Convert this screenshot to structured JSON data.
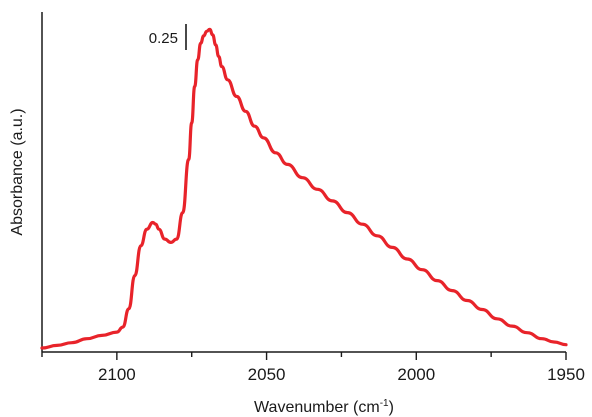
{
  "chart_data": {
    "type": "line",
    "title": "",
    "xlabel": "Wavenumber (cm",
    "xlabel_sup": "-1",
    "xlabel_close": ")",
    "ylabel": "Absorbance (a.u.)",
    "xlim": [
      2125,
      1950
    ],
    "x_reversed": true,
    "ylim": [
      0,
      1.0
    ],
    "y_tick_labels_shown": false,
    "x_ticks": [
      2100,
      2050,
      2000,
      1950
    ],
    "x_tick_labels": [
      "2100",
      "2050",
      "2000",
      "1950"
    ],
    "grid": false,
    "legend": "none",
    "scale_bar": {
      "label": "0.25",
      "value": 0.25
    },
    "series": [
      {
        "color": "#e8232a",
        "x": [
          2125,
          2120,
          2115,
          2110,
          2105,
          2100,
          2098,
          2096,
          2094,
          2092,
          2090,
          2088,
          2087,
          2086,
          2084,
          2082,
          2080,
          2078,
          2076,
          2075,
          2074,
          2073,
          2072,
          2071,
          2070,
          2069,
          2068,
          2067,
          2066,
          2065,
          2063,
          2060,
          2057,
          2054,
          2051,
          2047,
          2043,
          2038,
          2033,
          2028,
          2023,
          2018,
          2013,
          2008,
          2003,
          1998,
          1993,
          1988,
          1983,
          1978,
          1973,
          1968,
          1963,
          1958,
          1954,
          1950
        ],
        "y": [
          0.012,
          0.02,
          0.028,
          0.04,
          0.05,
          0.06,
          0.075,
          0.13,
          0.23,
          0.32,
          0.37,
          0.39,
          0.385,
          0.37,
          0.34,
          0.33,
          0.34,
          0.42,
          0.58,
          0.69,
          0.8,
          0.88,
          0.93,
          0.952,
          0.966,
          0.972,
          0.955,
          0.925,
          0.89,
          0.86,
          0.82,
          0.77,
          0.725,
          0.68,
          0.645,
          0.6,
          0.565,
          0.525,
          0.49,
          0.455,
          0.42,
          0.385,
          0.35,
          0.315,
          0.28,
          0.248,
          0.215,
          0.185,
          0.155,
          0.128,
          0.1,
          0.078,
          0.058,
          0.04,
          0.03,
          0.022
        ]
      }
    ]
  }
}
